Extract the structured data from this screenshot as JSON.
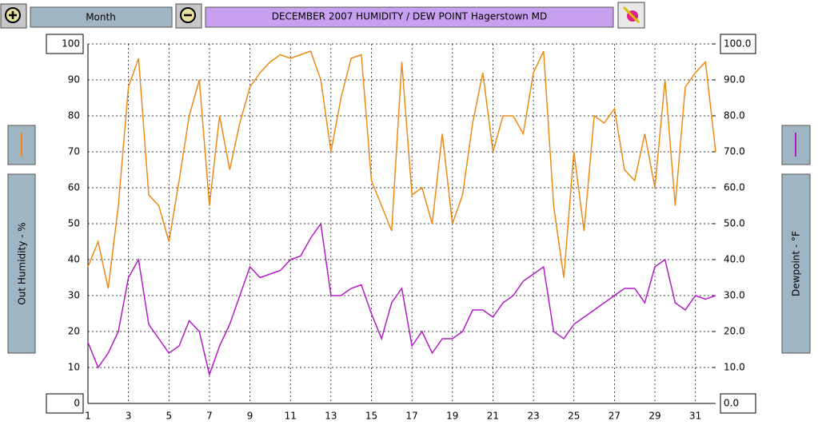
{
  "toolbar": {
    "period_button": "Month"
  },
  "chart_data": {
    "type": "line",
    "title": "DECEMBER 2007  HUMIDITY / DEW POINT  Hagerstown MD",
    "ylabel": "Out Humidity - %",
    "y2label": "Dewpoint - °F",
    "grid": true,
    "x": [
      1,
      1.5,
      2,
      2.5,
      3,
      3.5,
      4,
      4.5,
      5,
      5.5,
      6,
      6.5,
      7,
      7.5,
      8,
      8.5,
      9,
      9.5,
      10,
      10.5,
      11,
      11.5,
      12,
      12.5,
      13,
      13.5,
      14,
      14.5,
      15,
      15.5,
      16,
      16.5,
      17,
      17.5,
      18,
      18.5,
      19,
      19.5,
      20,
      20.5,
      21,
      21.5,
      22,
      22.5,
      23,
      23.5,
      24,
      24.5,
      25,
      25.5,
      26,
      26.5,
      27,
      27.5,
      28,
      28.5,
      29,
      29.5,
      30,
      30.5,
      31,
      31.5,
      32
    ],
    "xlim": [
      1,
      32
    ],
    "xticks": [
      1,
      3,
      5,
      7,
      9,
      11,
      13,
      15,
      17,
      19,
      21,
      23,
      25,
      27,
      29,
      31
    ],
    "ylim": [
      0,
      100
    ],
    "yticks": [
      0,
      10,
      20,
      30,
      40,
      50,
      60,
      70,
      80,
      90,
      100
    ],
    "y2lim": [
      0,
      100
    ],
    "y2ticks": [
      {
        "value": 0,
        "label": "0.0"
      },
      {
        "value": 10,
        "label": "10.0"
      },
      {
        "value": 20,
        "label": "20.0"
      },
      {
        "value": 30,
        "label": "30.0"
      },
      {
        "value": 40,
        "label": "40.0"
      },
      {
        "value": 50,
        "label": "50.0"
      },
      {
        "value": 60,
        "label": "60.0"
      },
      {
        "value": 70,
        "label": "70.0"
      },
      {
        "value": 80,
        "label": "80.0"
      },
      {
        "value": 90,
        "label": "90.0"
      },
      {
        "value": 100,
        "label": "100.0"
      }
    ],
    "series": [
      {
        "color": "#ec8a17",
        "axis": "y",
        "values": [
          38,
          45,
          32,
          55,
          88,
          96,
          58,
          55,
          45,
          62,
          80,
          90,
          55,
          80,
          65,
          78,
          88,
          92,
          95,
          97,
          96,
          97,
          98,
          90,
          70,
          85,
          96,
          97,
          62,
          55,
          48,
          95,
          58,
          60,
          50,
          75,
          50,
          58,
          78,
          92,
          70,
          80,
          80,
          75,
          92,
          98,
          55,
          35,
          70,
          48,
          80,
          78,
          82,
          65,
          62,
          75,
          60,
          90,
          55,
          88,
          92,
          95,
          70
        ]
      },
      {
        "color": "#b21cc4",
        "axis": "y2",
        "values": [
          17,
          10,
          14,
          20,
          35,
          40,
          22,
          18,
          14,
          16,
          23,
          20,
          8,
          16,
          22,
          30,
          38,
          35,
          36,
          37,
          40,
          41,
          46,
          50,
          30,
          30,
          32,
          33,
          25,
          18,
          28,
          32,
          16,
          20,
          14,
          18,
          18,
          20,
          26,
          26,
          24,
          28,
          30,
          34,
          36,
          38,
          20,
          18,
          22,
          24,
          26,
          28,
          30,
          32,
          32,
          28,
          38,
          40,
          28,
          26,
          30,
          29,
          30
        ]
      }
    ]
  }
}
